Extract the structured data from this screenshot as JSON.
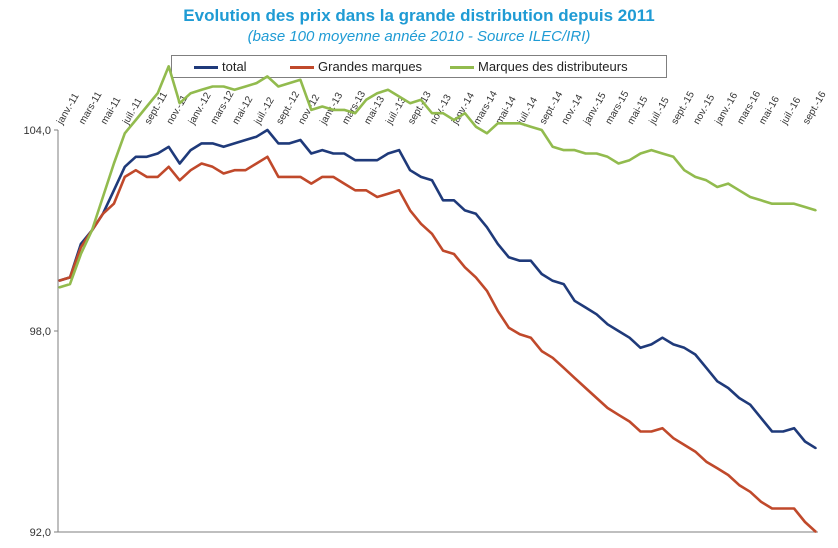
{
  "chart_data": {
    "type": "line",
    "title": "Evolution des prix dans la grande distribution depuis 2011",
    "subtitle": "(base 100 moyenne année 2010 - Source ILEC/IRI)",
    "x_tick_labels": [
      "janv.-11",
      "mars-11",
      "mai-11",
      "juil.-11",
      "sept.-11",
      "nov.-11",
      "janv.-12",
      "mars-12",
      "mai-12",
      "juil.-12",
      "sept.-12",
      "nov.-12",
      "janv.-13",
      "mars-13",
      "mai-13",
      "juil.-13",
      "sept.-13",
      "nov.-13",
      "janv.-14",
      "mars-14",
      "mai-14",
      "juil.-14",
      "sept.-14",
      "nov.-14",
      "janv.-15",
      "mars-15",
      "mai-15",
      "juil.-15",
      "sept.-15",
      "nov.-15",
      "janv.-16",
      "mars-16",
      "mai-16",
      "juil.-16",
      "sept.-16"
    ],
    "y_ticks": [
      "104,0",
      "98,0",
      "92,0"
    ],
    "ylim": [
      92,
      104
    ],
    "grid": false,
    "legend_position": "top",
    "series": [
      {
        "name": "total",
        "color": "#1f3a7a",
        "values": [
          99.5,
          99.6,
          100.6,
          101.0,
          101.5,
          102.2,
          102.9,
          103.2,
          103.2,
          103.3,
          103.5,
          103.0,
          103.4,
          103.6,
          103.6,
          103.5,
          103.6,
          103.7,
          103.8,
          104.0,
          103.6,
          103.6,
          103.7,
          103.3,
          103.4,
          103.3,
          103.3,
          103.1,
          103.1,
          103.1,
          103.3,
          103.4,
          102.8,
          102.6,
          102.5,
          101.9,
          101.9,
          101.6,
          101.5,
          101.1,
          100.6,
          100.2,
          100.1,
          100.1,
          99.7,
          99.5,
          99.4,
          98.9,
          98.7,
          98.5,
          98.2,
          98.0,
          97.8,
          97.5,
          97.6,
          97.8,
          97.6,
          97.5,
          97.3,
          96.9,
          96.5,
          96.3,
          96.0,
          95.8,
          95.4,
          95.0,
          95.0,
          95.1,
          94.7,
          94.5
        ]
      },
      {
        "name": "Grandes marques",
        "color": "#c0492b",
        "values": [
          99.5,
          99.6,
          100.5,
          101.0,
          101.5,
          101.8,
          102.6,
          102.8,
          102.6,
          102.6,
          102.9,
          102.5,
          102.8,
          103.0,
          102.9,
          102.7,
          102.8,
          102.8,
          103.0,
          103.2,
          102.6,
          102.6,
          102.6,
          102.4,
          102.6,
          102.6,
          102.4,
          102.2,
          102.2,
          102.0,
          102.1,
          102.2,
          101.6,
          101.2,
          100.9,
          100.4,
          100.3,
          99.9,
          99.6,
          99.2,
          98.6,
          98.1,
          97.9,
          97.8,
          97.4,
          97.2,
          96.9,
          96.6,
          96.3,
          96.0,
          95.7,
          95.5,
          95.3,
          95.0,
          95.0,
          95.1,
          94.8,
          94.6,
          94.4,
          94.1,
          93.9,
          93.7,
          93.4,
          93.2,
          92.9,
          92.7,
          92.7,
          92.7,
          92.3,
          92.0
        ]
      },
      {
        "name": "Marques des distributeurs",
        "color": "#92bb4e",
        "values": [
          99.3,
          99.4,
          100.3,
          101.0,
          102.0,
          103.0,
          103.9,
          104.3,
          104.7,
          105.1,
          105.9,
          104.8,
          105.1,
          105.2,
          105.3,
          105.3,
          105.2,
          105.3,
          105.4,
          105.6,
          105.3,
          105.4,
          105.5,
          104.6,
          104.7,
          104.6,
          104.6,
          104.5,
          104.9,
          105.1,
          105.2,
          105.0,
          104.8,
          104.9,
          104.5,
          104.5,
          104.3,
          104.5,
          104.1,
          103.9,
          104.2,
          104.2,
          104.2,
          104.1,
          104.0,
          103.5,
          103.4,
          103.4,
          103.3,
          103.3,
          103.2,
          103.0,
          103.1,
          103.3,
          103.4,
          103.3,
          103.2,
          102.8,
          102.6,
          102.5,
          102.3,
          102.4,
          102.2,
          102.0,
          101.9,
          101.8,
          101.8,
          101.8,
          101.7,
          101.6
        ]
      }
    ]
  }
}
